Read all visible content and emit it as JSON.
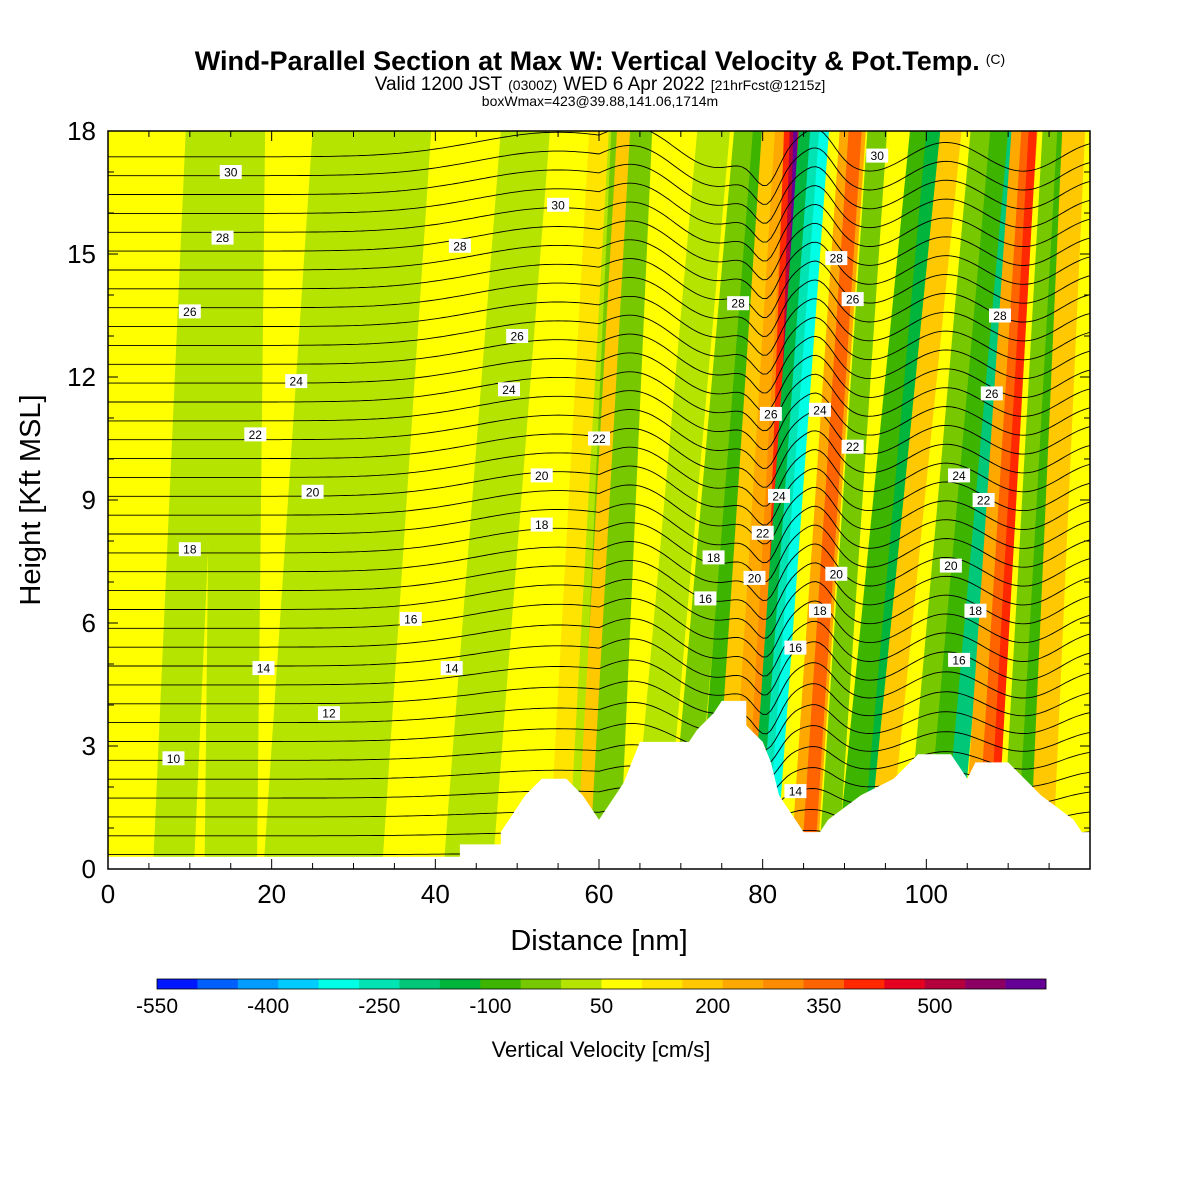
{
  "chart_data": {
    "type": "heatmap",
    "title": "Wind-Parallel Section at Max W: Vertical Velocity & Pot.Temp.",
    "title_mark": "(C)",
    "subtitle_parts": [
      "Valid 1200 JST",
      "(0300Z)",
      "WED 6 Apr 2022",
      "[21hrFcst@1215z]"
    ],
    "subtitle2": "boxWmax=423@39.88,141.06,1714m",
    "xlabel": "Distance [nm]",
    "ylabel": "Height [Kft MSL]",
    "xlim": [
      0,
      120
    ],
    "ylim": [
      0,
      18
    ],
    "x_ticks": [
      0,
      20,
      40,
      60,
      80,
      100
    ],
    "y_ticks": [
      0,
      3,
      6,
      9,
      12,
      15,
      18
    ],
    "colorbar": {
      "title": "Vertical Velocity [cm/s]",
      "range": [
        -550,
        650
      ],
      "labeled_ticks": [
        -550,
        -400,
        -250,
        -100,
        50,
        200,
        350,
        500
      ],
      "colors": [
        "#0018ff",
        "#0060ff",
        "#009cff",
        "#00ccff",
        "#00ffe4",
        "#00e4b4",
        "#00c878",
        "#00b43c",
        "#3cb400",
        "#78c800",
        "#b4e400",
        "#ffff00",
        "#ffe400",
        "#ffc800",
        "#ffa800",
        "#ff8c00",
        "#ff6400",
        "#ff2800",
        "#e4001e",
        "#b4003c",
        "#8c0064",
        "#640096"
      ]
    },
    "terrain": [
      [
        0,
        0.3
      ],
      [
        6,
        0.3
      ],
      [
        42,
        0.3
      ],
      [
        43,
        0.3
      ],
      [
        43,
        0.6
      ],
      [
        48,
        0.6
      ],
      [
        48,
        0.9
      ],
      [
        49,
        1.2
      ],
      [
        50,
        1.5
      ],
      [
        51,
        1.8
      ],
      [
        53,
        2.2
      ],
      [
        56,
        2.2
      ],
      [
        58,
        1.8
      ],
      [
        59,
        1.5
      ],
      [
        60,
        1.2
      ],
      [
        61,
        1.5
      ],
      [
        62,
        1.8
      ],
      [
        63,
        2.1
      ],
      [
        64,
        2.6
      ],
      [
        65,
        3.1
      ],
      [
        71,
        3.1
      ],
      [
        72,
        3.4
      ],
      [
        74,
        3.8
      ],
      [
        75,
        4.1
      ],
      [
        78,
        4.1
      ],
      [
        78,
        3.5
      ],
      [
        80,
        3.1
      ],
      [
        81,
        2.6
      ],
      [
        82,
        1.8
      ],
      [
        83,
        1.5
      ],
      [
        84,
        1.2
      ],
      [
        85,
        0.9
      ],
      [
        87,
        0.9
      ],
      [
        88,
        1.2
      ],
      [
        90,
        1.5
      ],
      [
        92,
        1.8
      ],
      [
        96,
        2.2
      ],
      [
        98,
        2.6
      ],
      [
        99,
        2.8
      ],
      [
        103,
        2.8
      ],
      [
        104,
        2.5
      ],
      [
        105,
        2.2
      ],
      [
        106,
        2.6
      ],
      [
        110,
        2.6
      ],
      [
        112,
        2.2
      ],
      [
        114,
        1.8
      ],
      [
        116,
        1.5
      ],
      [
        118,
        1.2
      ],
      [
        119,
        0.9
      ],
      [
        120,
        0.9
      ]
    ],
    "theta_labels": [
      {
        "text": "30",
        "x": 15,
        "y": 17.0
      },
      {
        "text": "30",
        "x": 55,
        "y": 16.2
      },
      {
        "text": "28",
        "x": 14,
        "y": 15.4
      },
      {
        "text": "28",
        "x": 43,
        "y": 15.2
      },
      {
        "text": "26",
        "x": 10,
        "y": 13.6
      },
      {
        "text": "26",
        "x": 50,
        "y": 13.0
      },
      {
        "text": "24",
        "x": 23,
        "y": 11.9
      },
      {
        "text": "24",
        "x": 49,
        "y": 11.7
      },
      {
        "text": "22",
        "x": 18,
        "y": 10.6
      },
      {
        "text": "22",
        "x": 60,
        "y": 10.5
      },
      {
        "text": "20",
        "x": 25,
        "y": 9.2
      },
      {
        "text": "20",
        "x": 53,
        "y": 9.6
      },
      {
        "text": "18",
        "x": 10,
        "y": 7.8
      },
      {
        "text": "18",
        "x": 53,
        "y": 8.4
      },
      {
        "text": "16",
        "x": 37,
        "y": 6.1
      },
      {
        "text": "14",
        "x": 19,
        "y": 4.9
      },
      {
        "text": "14",
        "x": 42,
        "y": 4.9
      },
      {
        "text": "12",
        "x": 27,
        "y": 3.8
      },
      {
        "text": "10",
        "x": 8,
        "y": 2.7
      },
      {
        "text": "18",
        "x": 74,
        "y": 7.6
      },
      {
        "text": "16",
        "x": 73,
        "y": 6.6
      },
      {
        "text": "28",
        "x": 77,
        "y": 13.8
      },
      {
        "text": "26",
        "x": 81,
        "y": 11.1
      },
      {
        "text": "24",
        "x": 82,
        "y": 9.1
      },
      {
        "text": "22",
        "x": 80,
        "y": 8.2
      },
      {
        "text": "20",
        "x": 79,
        "y": 7.1
      },
      {
        "text": "16",
        "x": 84,
        "y": 5.4
      },
      {
        "text": "14",
        "x": 84,
        "y": 1.9
      },
      {
        "text": "18",
        "x": 87,
        "y": 6.3
      },
      {
        "text": "20",
        "x": 89,
        "y": 7.2
      },
      {
        "text": "22",
        "x": 91,
        "y": 10.3
      },
      {
        "text": "24",
        "x": 87,
        "y": 11.2
      },
      {
        "text": "26",
        "x": 91,
        "y": 13.9
      },
      {
        "text": "28",
        "x": 89,
        "y": 14.9
      },
      {
        "text": "30",
        "x": 94,
        "y": 17.4
      },
      {
        "text": "28",
        "x": 109,
        "y": 13.5
      },
      {
        "text": "26",
        "x": 108,
        "y": 11.6
      },
      {
        "text": "24",
        "x": 104,
        "y": 9.6
      },
      {
        "text": "22",
        "x": 107,
        "y": 9.0
      },
      {
        "text": "20",
        "x": 103,
        "y": 7.4
      },
      {
        "text": "18",
        "x": 106,
        "y": 6.3
      },
      {
        "text": "16",
        "x": 104,
        "y": 5.1
      }
    ],
    "grid": false
  }
}
